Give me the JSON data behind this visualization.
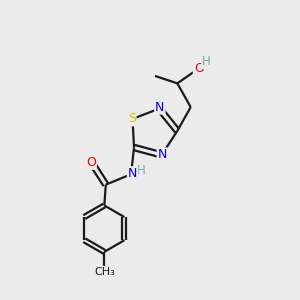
{
  "background_color": "#ebebeb",
  "bond_color": "#1a1a1a",
  "atom_colors": {
    "N": "#0000ee",
    "O": "#ee0000",
    "S": "#c8c800",
    "H": "#6fa8a8",
    "C": "#1a1a1a"
  },
  "figsize": [
    3.0,
    3.0
  ],
  "dpi": 100
}
